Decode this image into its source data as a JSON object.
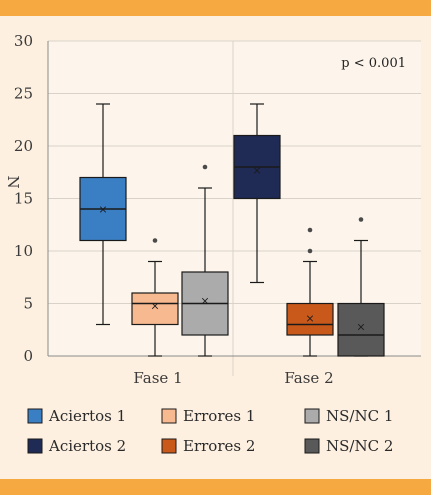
{
  "chart_data": {
    "type": "box",
    "title": "",
    "xlabel": "",
    "ylabel": "N",
    "ylim": [
      0,
      30
    ],
    "yticks": [
      0,
      5,
      10,
      15,
      20,
      25,
      30
    ],
    "categories": [
      "Fase 1",
      "Fase 2"
    ],
    "annotation": "p < 0.001",
    "grid": true,
    "legend_position": "bottom",
    "series": [
      {
        "name": "Aciertos 1",
        "category": "Fase 1",
        "color": "#3a7ec4",
        "whisker_low": 3,
        "q1": 11,
        "median": 14,
        "q3": 17,
        "whisker_high": 24,
        "mean": 14,
        "outliers": []
      },
      {
        "name": "Errores 1",
        "category": "Fase 1",
        "color": "#f6b990",
        "whisker_low": 0,
        "q1": 3,
        "median": 5,
        "q3": 6,
        "whisker_high": 9,
        "mean": 4.8,
        "outliers": [
          11
        ]
      },
      {
        "name": "NS/NC 1",
        "category": "Fase 1",
        "color": "#ababab",
        "whisker_low": 0,
        "q1": 2,
        "median": 5,
        "q3": 8,
        "whisker_high": 16,
        "mean": 5.3,
        "outliers": [
          18
        ]
      },
      {
        "name": "Aciertos 2",
        "category": "Fase 2",
        "color": "#1f2a55",
        "whisker_low": 7,
        "q1": 15,
        "median": 18,
        "q3": 21,
        "whisker_high": 24,
        "mean": 17.7,
        "outliers": []
      },
      {
        "name": "Errores 2",
        "category": "Fase 2",
        "color": "#c9591b",
        "whisker_low": 0,
        "q1": 2,
        "median": 3,
        "q3": 5,
        "whisker_high": 9,
        "mean": 3.6,
        "outliers": [
          10,
          12
        ]
      },
      {
        "name": "NS/NC 2",
        "category": "Fase 2",
        "color": "#595959",
        "whisker_low": 0,
        "q1": 0,
        "median": 2,
        "q3": 5,
        "whisker_high": 11,
        "mean": 2.8,
        "outliers": [
          13
        ]
      }
    ]
  }
}
